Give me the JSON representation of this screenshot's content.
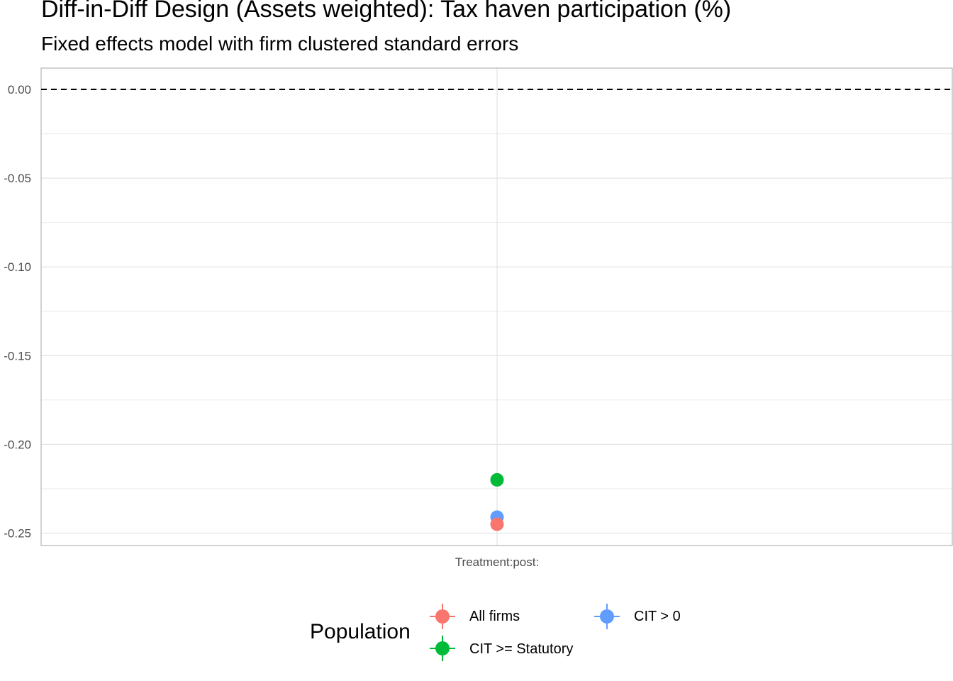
{
  "title": "Diff-in-Diff Design (Assets weighted): Tax haven participation (%)",
  "subtitle": "Fixed effects model with firm clustered standard errors",
  "chart_data": {
    "type": "scatter",
    "categories": [
      "Treatment:post:"
    ],
    "ylim": [
      -0.257,
      0.012
    ],
    "y_ticks": [
      0.0,
      -0.05,
      -0.1,
      -0.15,
      -0.2,
      -0.25
    ],
    "y_tick_labels": [
      "0.00",
      "-0.05",
      "-0.10",
      "-0.15",
      "-0.20",
      "-0.25"
    ],
    "reference_line": 0.0,
    "grid": true,
    "legend_title": "Population",
    "legend_position": "bottom",
    "series": [
      {
        "name": "All firms",
        "color": "#F8766D",
        "values": [
          -0.245
        ]
      },
      {
        "name": "CIT >= Statutory",
        "color": "#00BA38",
        "values": [
          -0.22
        ]
      },
      {
        "name": "CIT > 0",
        "color": "#619CFF",
        "values": [
          -0.241
        ]
      }
    ]
  }
}
